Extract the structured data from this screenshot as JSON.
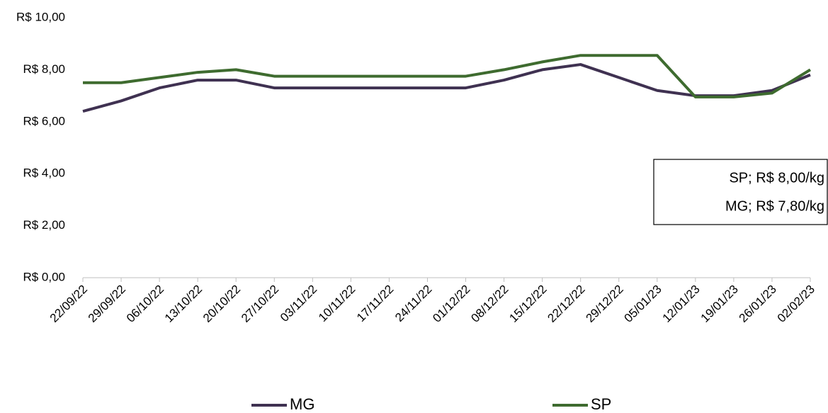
{
  "chart_data": {
    "type": "line",
    "categories": [
      "22/09/22",
      "29/09/22",
      "06/10/22",
      "13/10/22",
      "20/10/22",
      "27/10/22",
      "03/11/22",
      "10/11/22",
      "17/11/22",
      "24/11/22",
      "01/12/22",
      "08/12/22",
      "15/12/22",
      "22/12/22",
      "29/12/22",
      "05/01/23",
      "12/01/23",
      "19/01/23",
      "26/01/23",
      "02/02/23"
    ],
    "series": [
      {
        "name": "MG",
        "color": "#3f3151",
        "values": [
          6.4,
          6.8,
          7.3,
          7.6,
          7.6,
          7.3,
          7.3,
          7.3,
          7.3,
          7.3,
          7.3,
          7.6,
          8.0,
          8.2,
          7.7,
          7.2,
          7.0,
          7.0,
          7.2,
          7.8
        ]
      },
      {
        "name": "SP",
        "color": "#3e6b2f",
        "values": [
          7.5,
          7.5,
          7.7,
          7.9,
          8.0,
          7.75,
          7.75,
          7.75,
          7.75,
          7.75,
          7.75,
          8.0,
          8.3,
          8.55,
          8.55,
          8.55,
          6.95,
          6.95,
          7.1,
          8.0
        ]
      }
    ],
    "ylim": [
      0,
      10
    ],
    "yticks": [
      {
        "value": 0,
        "label": "R$ 0,00"
      },
      {
        "value": 2,
        "label": "R$ 2,00"
      },
      {
        "value": 4,
        "label": "R$ 4,00"
      },
      {
        "value": 6,
        "label": "R$ 6,00"
      },
      {
        "value": 8,
        "label": "R$ 8,00"
      },
      {
        "value": 10,
        "label": "R$ 10,00"
      }
    ],
    "grid": false,
    "annotations": [
      "SP; R$ 8,00/kg",
      "MG; R$ 7,80/kg"
    ],
    "legend": "bottom"
  }
}
